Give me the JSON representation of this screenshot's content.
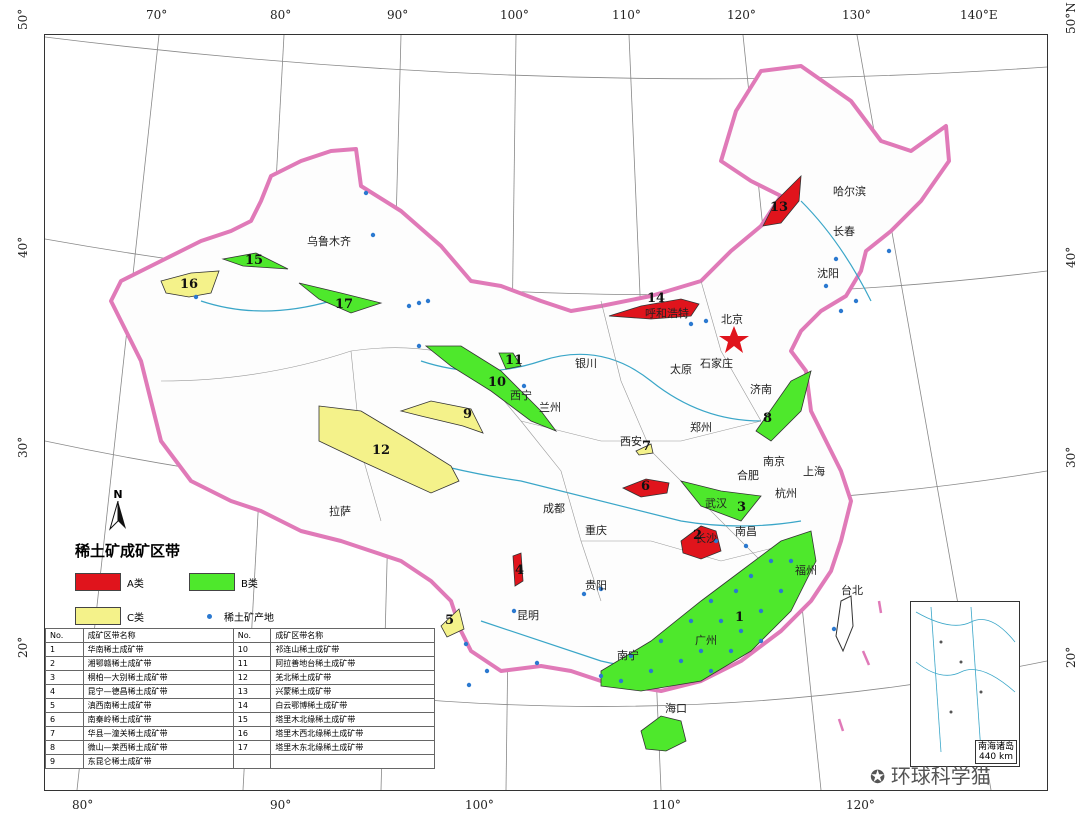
{
  "map": {
    "lon_top": [
      "70°",
      "80°",
      "90°",
      "100°",
      "110°",
      "120°",
      "130°",
      "140°E"
    ],
    "lon_bottom": [
      "80°",
      "90°",
      "100°",
      "110°",
      "120°"
    ],
    "lat_left": [
      "50°",
      "40°",
      "30°",
      "20°"
    ],
    "lat_right": [
      "50°N",
      "40°",
      "30°",
      "20°"
    ],
    "cities": [
      "乌鲁木齐",
      "哈尔滨",
      "长春",
      "沈阳",
      "北京",
      "呼和浩特",
      "银川",
      "石家庄",
      "太原",
      "西宁",
      "兰州",
      "郑州",
      "济南",
      "西安",
      "合肥",
      "南京",
      "上海",
      "杭州",
      "武汉",
      "成都",
      "重庆",
      "长沙",
      "南昌",
      "拉萨",
      "贵阳",
      "昆明",
      "南宁",
      "广州",
      "福州",
      "台北",
      "海口"
    ],
    "colors": {
      "class_a": "#e0141c",
      "class_b": "#4ee82c",
      "class_c": "#f4f28a",
      "deposit": "#2b79d0",
      "border": "#e07ab8",
      "river": "#3aa6c8"
    }
  },
  "legend": {
    "title": "稀土矿成矿区带",
    "class_a": "A类",
    "class_b": "B类",
    "class_c": "C类",
    "deposit": "稀土矿产地",
    "north": "N"
  },
  "zone_table": {
    "header": [
      "No.",
      "成矿区带名称",
      "No.",
      "成矿区带名称"
    ],
    "rows": [
      [
        "1",
        "华南稀土成矿带",
        "10",
        "祁连山稀土成矿带"
      ],
      [
        "2",
        "湘鄂赣稀土成矿带",
        "11",
        "阿拉善地台稀土成矿带"
      ],
      [
        "3",
        "桐柏—大别稀土成矿带",
        "12",
        "羌北稀土成矿带"
      ],
      [
        "4",
        "昆宁—德昌稀土成矿带",
        "13",
        "兴蒙稀土成矿带"
      ],
      [
        "5",
        "滇西南稀土成矿带",
        "14",
        "白云鄂博稀土成矿带"
      ],
      [
        "6",
        "南秦岭稀土成矿带",
        "15",
        "塔里木北缘稀土成矿带"
      ],
      [
        "7",
        "华县—潼关稀土成矿带",
        "16",
        "塔里木西北缘稀土成矿带"
      ],
      [
        "8",
        "微山—莱西稀土成矿带",
        "17",
        "塔里木东北缘稀土成矿带"
      ],
      [
        "9",
        "东昆仑稀土成矿带",
        "",
        ""
      ]
    ]
  },
  "inset": {
    "title": "南海诸岛",
    "scale": "440 km"
  },
  "zones": [
    "1",
    "2",
    "3",
    "4",
    "5",
    "6",
    "7",
    "8",
    "9",
    "10",
    "11",
    "12",
    "13",
    "14",
    "15",
    "16",
    "17"
  ],
  "watermark": "环球科学猫"
}
